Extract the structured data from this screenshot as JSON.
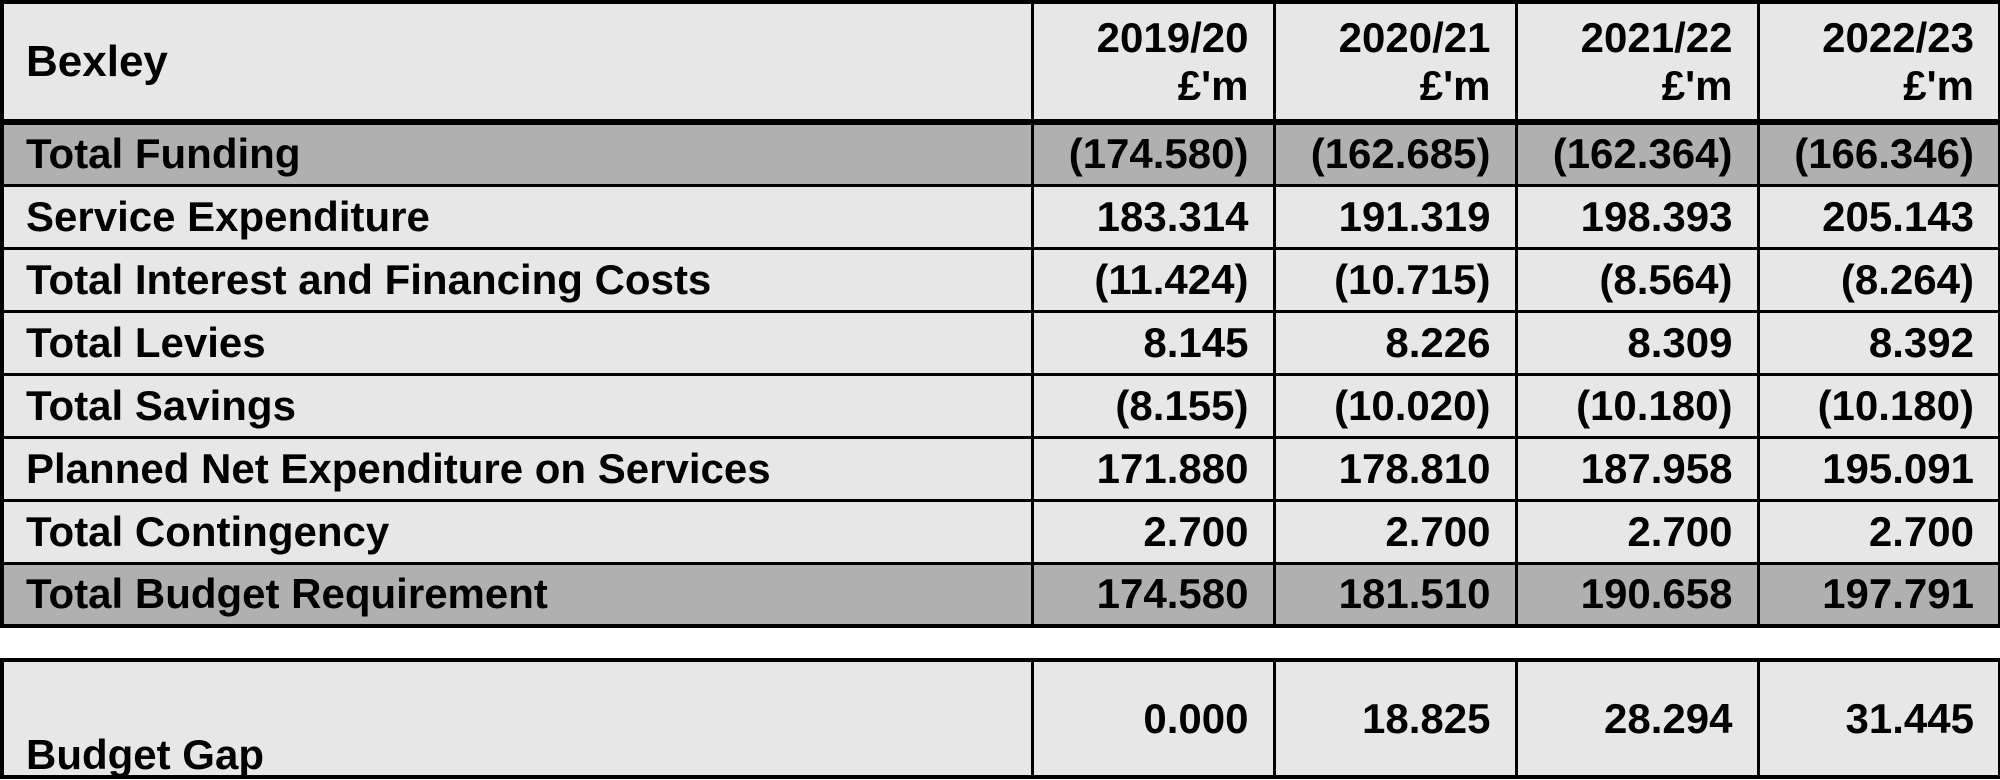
{
  "table": {
    "title": "Bexley",
    "unit": "£'m",
    "columns": [
      "2019/20",
      "2020/21",
      "2021/22",
      "2022/23"
    ],
    "rows": [
      {
        "label": "Total Funding",
        "highlight": true,
        "values": [
          "(174.580)",
          "(162.685)",
          "(162.364)",
          "(166.346)"
        ]
      },
      {
        "label": "Service Expenditure",
        "highlight": false,
        "values": [
          "183.314",
          "191.319",
          "198.393",
          "205.143"
        ]
      },
      {
        "label": "Total Interest and Financing Costs",
        "highlight": false,
        "values": [
          "(11.424)",
          "(10.715)",
          "(8.564)",
          "(8.264)"
        ]
      },
      {
        "label": "Total Levies",
        "highlight": false,
        "values": [
          "8.145",
          "8.226",
          "8.309",
          "8.392"
        ]
      },
      {
        "label": "Total Savings",
        "highlight": false,
        "values": [
          "(8.155)",
          "(10.020)",
          "(10.180)",
          "(10.180)"
        ]
      },
      {
        "label": "Planned Net Expenditure on Services",
        "highlight": false,
        "values": [
          "171.880",
          "178.810",
          "187.958",
          "195.091"
        ]
      },
      {
        "label": "Total Contingency",
        "highlight": false,
        "values": [
          "2.700",
          "2.700",
          "2.700",
          "2.700"
        ]
      },
      {
        "label": "Total Budget Requirement",
        "highlight": true,
        "values": [
          "174.580",
          "181.510",
          "190.658",
          "197.791"
        ]
      }
    ],
    "footer": {
      "label": "Budget Gap",
      "values": [
        "0.000",
        "18.825",
        "28.294",
        "31.445"
      ]
    }
  },
  "colors": {
    "cell_bg": "#e7e7e7",
    "highlight_bg": "#b0b0b0",
    "border": "#000000",
    "page_bg": "#ffffff",
    "text": "#000000"
  }
}
